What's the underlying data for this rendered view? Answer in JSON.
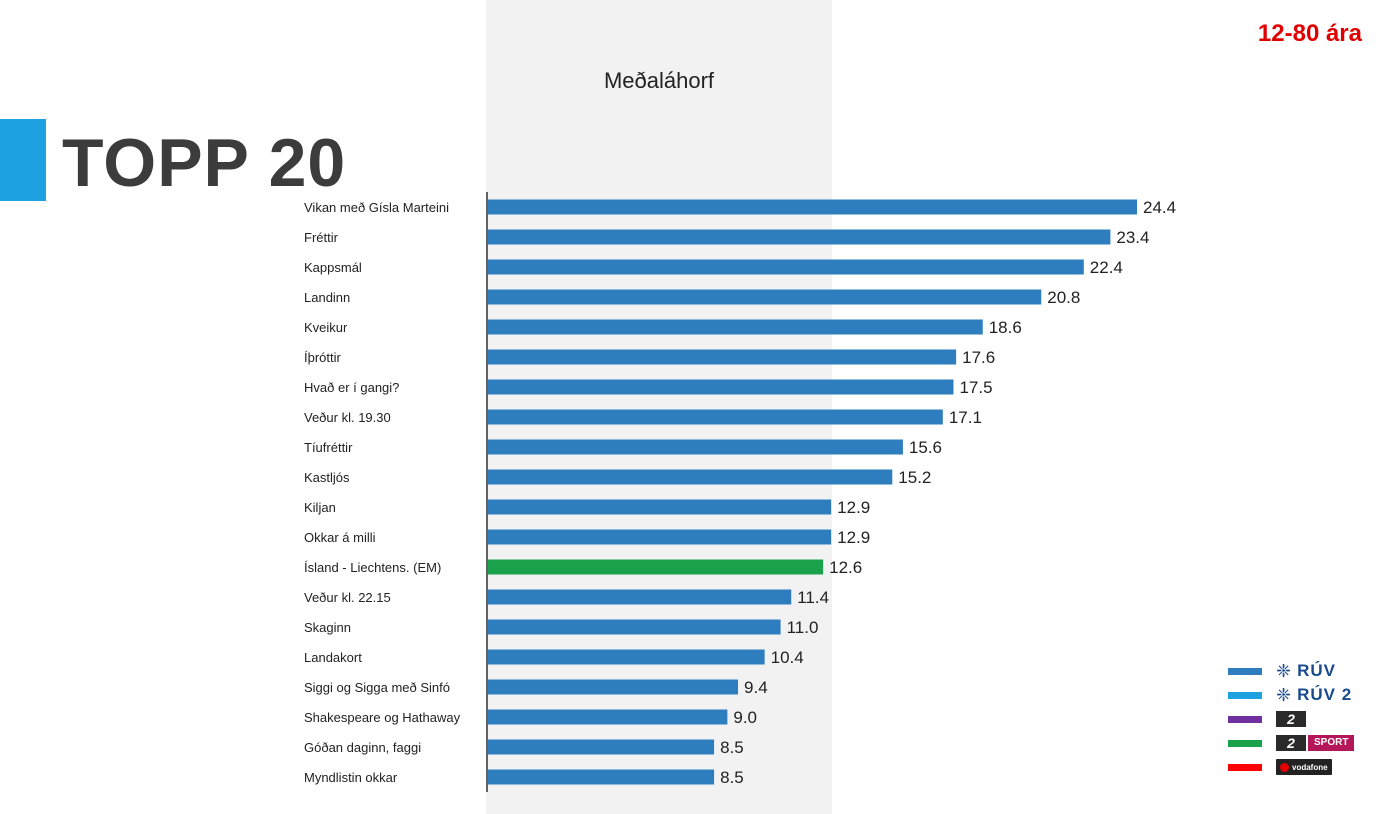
{
  "header": {
    "title": "TOPP 20",
    "age_range": "12-80 ára",
    "column_title": "Meðaláhorf",
    "accent_color": "#1da1e0"
  },
  "chart_data": {
    "type": "bar",
    "orientation": "horizontal",
    "title": "TOPP 20",
    "column_title": "Meðaláhorf",
    "categories": [
      "Vikan með Gísla Marteini",
      "Fréttir",
      "Kappsmál",
      "Landinn",
      "Kveikur",
      "Íþróttir",
      "Hvað er í gangi?",
      "Veður kl. 19.30",
      "Tíufréttir",
      "Kastljós",
      "Kiljan",
      "Okkar á milli",
      "Ísland - Liechtens. (EM)",
      "Veður kl. 22.15",
      "Skaginn",
      "Landakort",
      "Siggi og Sigga með Sinfó",
      "Shakespeare og Hathaway",
      "Góðan daginn, faggi",
      "Myndlistin okkar"
    ],
    "values": [
      24.4,
      23.4,
      22.4,
      20.8,
      18.6,
      17.6,
      17.5,
      17.1,
      15.6,
      15.2,
      12.9,
      12.9,
      12.6,
      11.4,
      11.0,
      10.4,
      9.4,
      9.0,
      8.5,
      8.5
    ],
    "value_labels": [
      "24.4",
      "23.4",
      "22.4",
      "20.8",
      "18.6",
      "17.6",
      "17.5",
      "17.1",
      "15.6",
      "15.2",
      "12.9",
      "12.9",
      "12.6",
      "11.4",
      "11.0",
      "10.4",
      "9.4",
      "9.0",
      "8.5",
      "8.5"
    ],
    "channels": [
      "RÚV",
      "RÚV",
      "RÚV",
      "RÚV",
      "RÚV",
      "RÚV",
      "RÚV",
      "RÚV",
      "RÚV",
      "RÚV",
      "RÚV",
      "RÚV",
      "Stöð 2 Sport",
      "RÚV",
      "RÚV",
      "RÚV",
      "RÚV",
      "RÚV",
      "RÚV",
      "RÚV"
    ],
    "xlim": [
      0,
      24.4
    ],
    "grid": false,
    "legend_position": "bottom-right"
  },
  "legend": [
    {
      "key": "ruv",
      "label": "RÚV",
      "color": "#2e7ebf",
      "logo": "ruv-logo"
    },
    {
      "key": "ruv2",
      "label": "RÚV 2",
      "color": "#1da1e0",
      "logo": "ruv-logo"
    },
    {
      "key": "stod2",
      "label": "2",
      "color": "#7030a0",
      "logo": "stod2-logo"
    },
    {
      "key": "stod2sport",
      "label": "2",
      "sublabel": "SPORT",
      "color": "#1aa14b",
      "logo": "stod2-sport-logo"
    },
    {
      "key": "vodafone",
      "label": "vodafone",
      "color": "#ff0000",
      "logo": "vodafone-logo"
    }
  ]
}
